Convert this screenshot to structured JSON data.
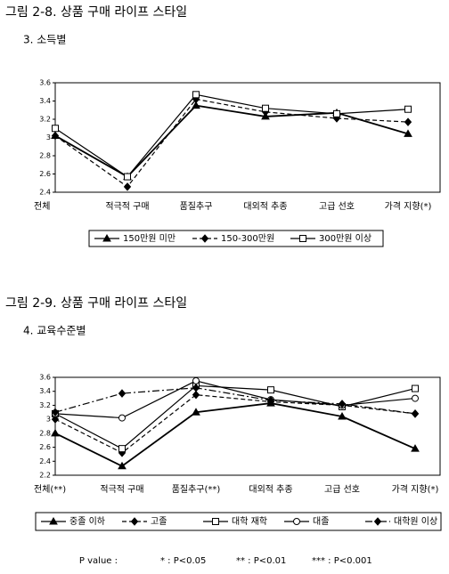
{
  "chart_data": [
    {
      "type": "line",
      "title": "그림 2-8. 상품 구매 라이프 스타일",
      "subtitle": "3. 소득별",
      "categories": [
        "전체",
        "적극적 구매",
        "품질추구",
        "대외적 추종",
        "고급 선호",
        "가격 지향(*)"
      ],
      "ylim": [
        2.4,
        3.6
      ],
      "yticks": [
        2.4,
        2.6,
        2.8,
        3,
        3.2,
        3.4,
        3.6
      ],
      "legend": "bottom",
      "series": [
        {
          "name": "150만원 미만",
          "color": "#000000",
          "marker": "triangle",
          "dash": "solid",
          "values": [
            3.02,
            2.57,
            3.35,
            3.23,
            3.27,
            3.04
          ]
        },
        {
          "name": "150-300만원",
          "color": "#000000",
          "marker": "diamond",
          "dash": "dashed",
          "values": [
            3.02,
            2.46,
            3.42,
            3.28,
            3.21,
            3.17
          ]
        },
        {
          "name": "300만원 이상",
          "color": "#000000",
          "marker": "square",
          "dash": "solid",
          "values": [
            3.1,
            2.57,
            3.47,
            3.32,
            3.26,
            3.31
          ]
        }
      ]
    },
    {
      "type": "line",
      "title": "그림 2-9. 상품 구매 라이프 스타일",
      "subtitle": "4. 교육수준별",
      "categories": [
        "전체(**)",
        "적극적 구매",
        "품질추구(**)",
        "대외적 추종",
        "고급 선호",
        "가격 지향(*)"
      ],
      "ylim": [
        2.2,
        3.6
      ],
      "yticks": [
        2.2,
        2.4,
        2.6,
        2.8,
        3,
        3.2,
        3.4,
        3.6
      ],
      "legend": "bottom",
      "series": [
        {
          "name": "중졸 이하",
          "color": "#000000",
          "marker": "triangle",
          "dash": "solid",
          "values": [
            2.8,
            2.33,
            3.1,
            3.23,
            3.04,
            2.58
          ]
        },
        {
          "name": "고졸",
          "color": "#000000",
          "marker": "diamond",
          "dash": "dashed",
          "values": [
            3.0,
            2.52,
            3.35,
            3.25,
            3.2,
            3.08
          ]
        },
        {
          "name": "대학 재학",
          "color": "#000000",
          "marker": "square",
          "dash": "solid",
          "values": [
            3.08,
            2.58,
            3.48,
            3.42,
            3.18,
            3.44
          ]
        },
        {
          "name": "대졸",
          "color": "#000000",
          "marker": "circle",
          "dash": "solid",
          "values": [
            3.08,
            3.02,
            3.55,
            3.28,
            3.2,
            3.3
          ]
        },
        {
          "name": "대학원 이상",
          "color": "#000000",
          "marker": "diamond",
          "dash": "dashdot",
          "values": [
            3.1,
            3.37,
            3.45,
            3.27,
            3.22,
            3.08
          ]
        }
      ]
    }
  ],
  "footnote": {
    "label": "P value :",
    "items": [
      "* : P<0.05",
      "** : P<0.01",
      "*** : P<0.001"
    ]
  }
}
